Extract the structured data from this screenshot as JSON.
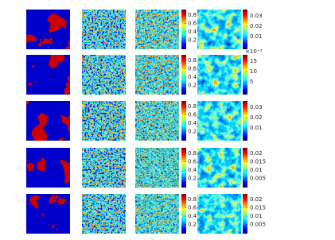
{
  "rows": [
    {
      "colorbar1": {
        "ticks": [
          0.8,
          0.6,
          0.4,
          0.2
        ]
      },
      "colorbar2": {
        "ticks": [
          0.03,
          0.02,
          0.01
        ]
      }
    },
    {
      "colorbar1": {
        "ticks": [
          0.8,
          0.6,
          0.4,
          0.2
        ]
      },
      "colorbar2": {
        "exponent": "×10⁻³",
        "ticks": [
          15,
          10,
          5
        ]
      }
    },
    {
      "colorbar1": {
        "ticks": [
          0.8,
          0.6,
          0.4,
          0.2
        ]
      },
      "colorbar2": {
        "ticks": [
          0.03,
          0.02,
          0.01
        ]
      }
    },
    {
      "colorbar1": {
        "ticks": [
          0.8,
          0.6,
          0.4,
          0.2
        ]
      },
      "colorbar2": {
        "ticks": [
          0.02,
          0.015,
          0.01,
          0.005
        ]
      }
    },
    {
      "colorbar1": {
        "ticks": [
          0.8,
          0.6,
          0.4,
          0.2
        ]
      },
      "colorbar2": {
        "ticks": [
          0.02,
          0.015,
          0.01,
          0.005
        ]
      }
    }
  ]
}
